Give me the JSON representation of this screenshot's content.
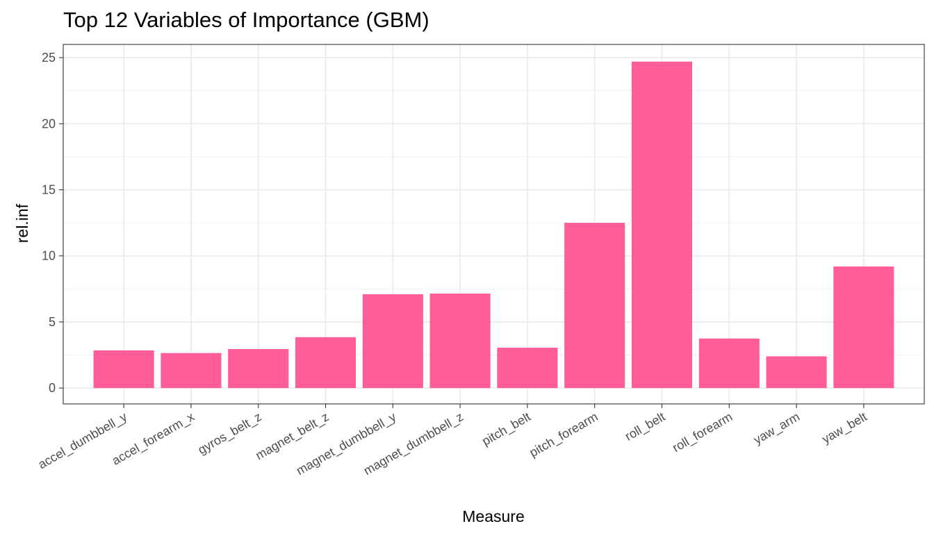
{
  "chart_data": {
    "type": "bar",
    "title": "Top 12 Variables of Importance (GBM)",
    "xlabel": "Measure",
    "ylabel": "rel.inf",
    "categories": [
      "accel_dumbbell_y",
      "accel_forearm_x",
      "gyros_belt_z",
      "magnet_belt_z",
      "magnet_dumbbell_y",
      "magnet_dumbbell_z",
      "pitch_belt",
      "pitch_forearm",
      "roll_belt",
      "roll_forearm",
      "yaw_arm",
      "yaw_belt"
    ],
    "values": [
      2.85,
      2.65,
      2.95,
      3.85,
      7.1,
      7.15,
      3.05,
      12.5,
      24.7,
      3.75,
      2.4,
      9.2
    ],
    "ylim": [
      -1.2,
      26.0
    ],
    "yticks": [
      0,
      5,
      10,
      15,
      20,
      25
    ],
    "ytick_labels": [
      "0",
      "5",
      "10",
      "15",
      "20",
      "25"
    ],
    "grid": true,
    "bar_color": "#ff4c8f",
    "bar_opacity": 0.9,
    "theme": "bw"
  }
}
